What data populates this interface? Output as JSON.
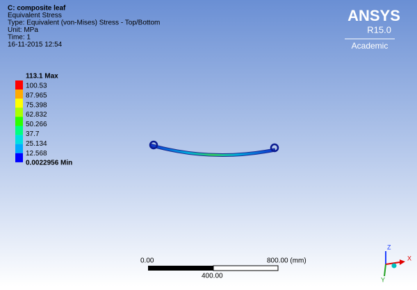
{
  "header": {
    "lines": [
      "C: composite leaf",
      "Equivalent Stress",
      "Type: Equivalent (von-Mises) Stress - Top/Bottom",
      "Unit: MPa",
      "Time: 1",
      "16-11-2015 12:54"
    ]
  },
  "logo": {
    "name": "ANSYS",
    "release": "R15.0",
    "edition": "Academic"
  },
  "legend": {
    "labels": [
      "113.1 Max",
      "100.53",
      "87.965",
      "75.398",
      "62.832",
      "50.266",
      "37.7",
      "25.134",
      "12.568",
      "0.0022956 Min"
    ],
    "colors": [
      "#ff0000",
      "#ffaa00",
      "#ffff00",
      "#aaff00",
      "#2bff00",
      "#00ff80",
      "#00e0e0",
      "#00aaff",
      "#0000ff"
    ]
  },
  "scale_bar": {
    "start": "0.00",
    "end": "800.00 (mm)",
    "middle": "400.00"
  },
  "triad": {
    "z": "Z",
    "x": "X",
    "y": "Y"
  }
}
